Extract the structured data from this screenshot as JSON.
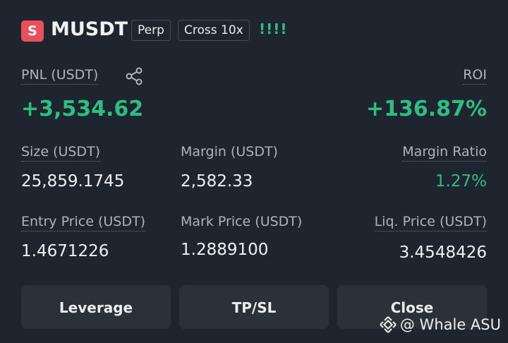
{
  "header": {
    "badge": "S",
    "symbol": "MUSDT",
    "tags": [
      "Perp",
      "Cross 10x"
    ],
    "adl": "!!!!"
  },
  "pnl": {
    "label": "PNL (USDT)",
    "value": "+3,534.62"
  },
  "roi": {
    "label": "ROI",
    "value": "+136.87%"
  },
  "fields": [
    {
      "label": "Size (USDT)",
      "value": "25,859.1745"
    },
    {
      "label": "Margin (USDT)",
      "value": "2,582.33"
    },
    {
      "label": "Margin Ratio",
      "value": "1.27%"
    },
    {
      "label": "Entry Price (USDT)",
      "value": "1.4671226"
    },
    {
      "label": "Mark Price (USDT)",
      "value": "1.2889100"
    },
    {
      "label": "Liq. Price (USDT)",
      "value": "3.4548426"
    }
  ],
  "buttons": [
    "Leverage",
    "TP/SL",
    "Close"
  ],
  "watermark": "@ Whale ASU"
}
